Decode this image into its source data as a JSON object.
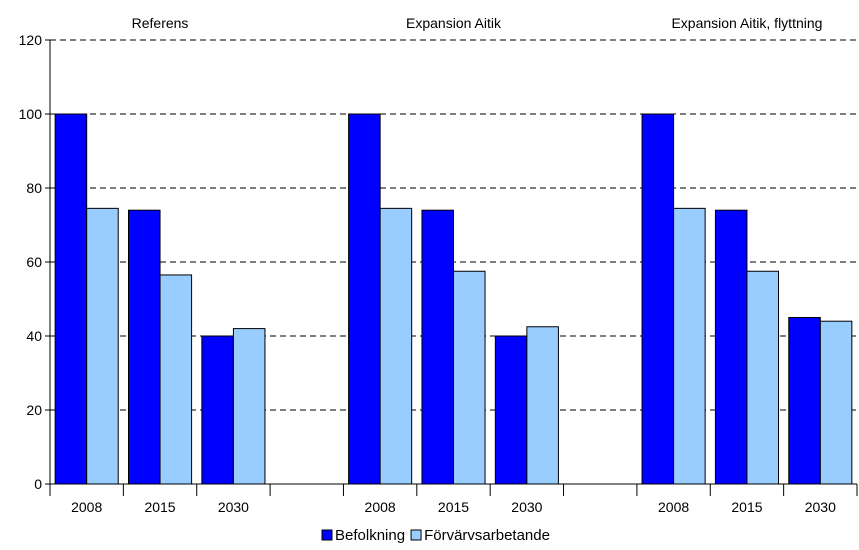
{
  "chart_data": {
    "type": "bar",
    "ylim": [
      0,
      120
    ],
    "yticks": [
      0,
      20,
      40,
      60,
      80,
      100,
      120
    ],
    "grid": true,
    "legend_position": "bottom",
    "groups": [
      {
        "title": "Referens",
        "categories": [
          "2008",
          "2015",
          "2030"
        ],
        "series": [
          {
            "name": "Befolkning",
            "values": [
              100,
              74,
              40
            ]
          },
          {
            "name": "Förvärvsarbetande",
            "values": [
              74.5,
              56.5,
              42
            ]
          }
        ]
      },
      {
        "title": "Expansion Aitik",
        "categories": [
          "2008",
          "2015",
          "2030"
        ],
        "series": [
          {
            "name": "Befolkning",
            "values": [
              100,
              74,
              40
            ]
          },
          {
            "name": "Förvärvsarbetande",
            "values": [
              74.5,
              57.5,
              42.5
            ]
          }
        ]
      },
      {
        "title": "Expansion Aitik, flyttning",
        "categories": [
          "2008",
          "2015",
          "2030"
        ],
        "series": [
          {
            "name": "Befolkning",
            "values": [
              100,
              74,
              45
            ]
          },
          {
            "name": "Förvärvsarbetande",
            "values": [
              74.5,
              57.5,
              44
            ]
          }
        ]
      }
    ],
    "legend": [
      {
        "name": "Befolkning",
        "color": "#0000ff"
      },
      {
        "name": "Förvärvsarbetande",
        "color": "#99ccff"
      }
    ]
  }
}
